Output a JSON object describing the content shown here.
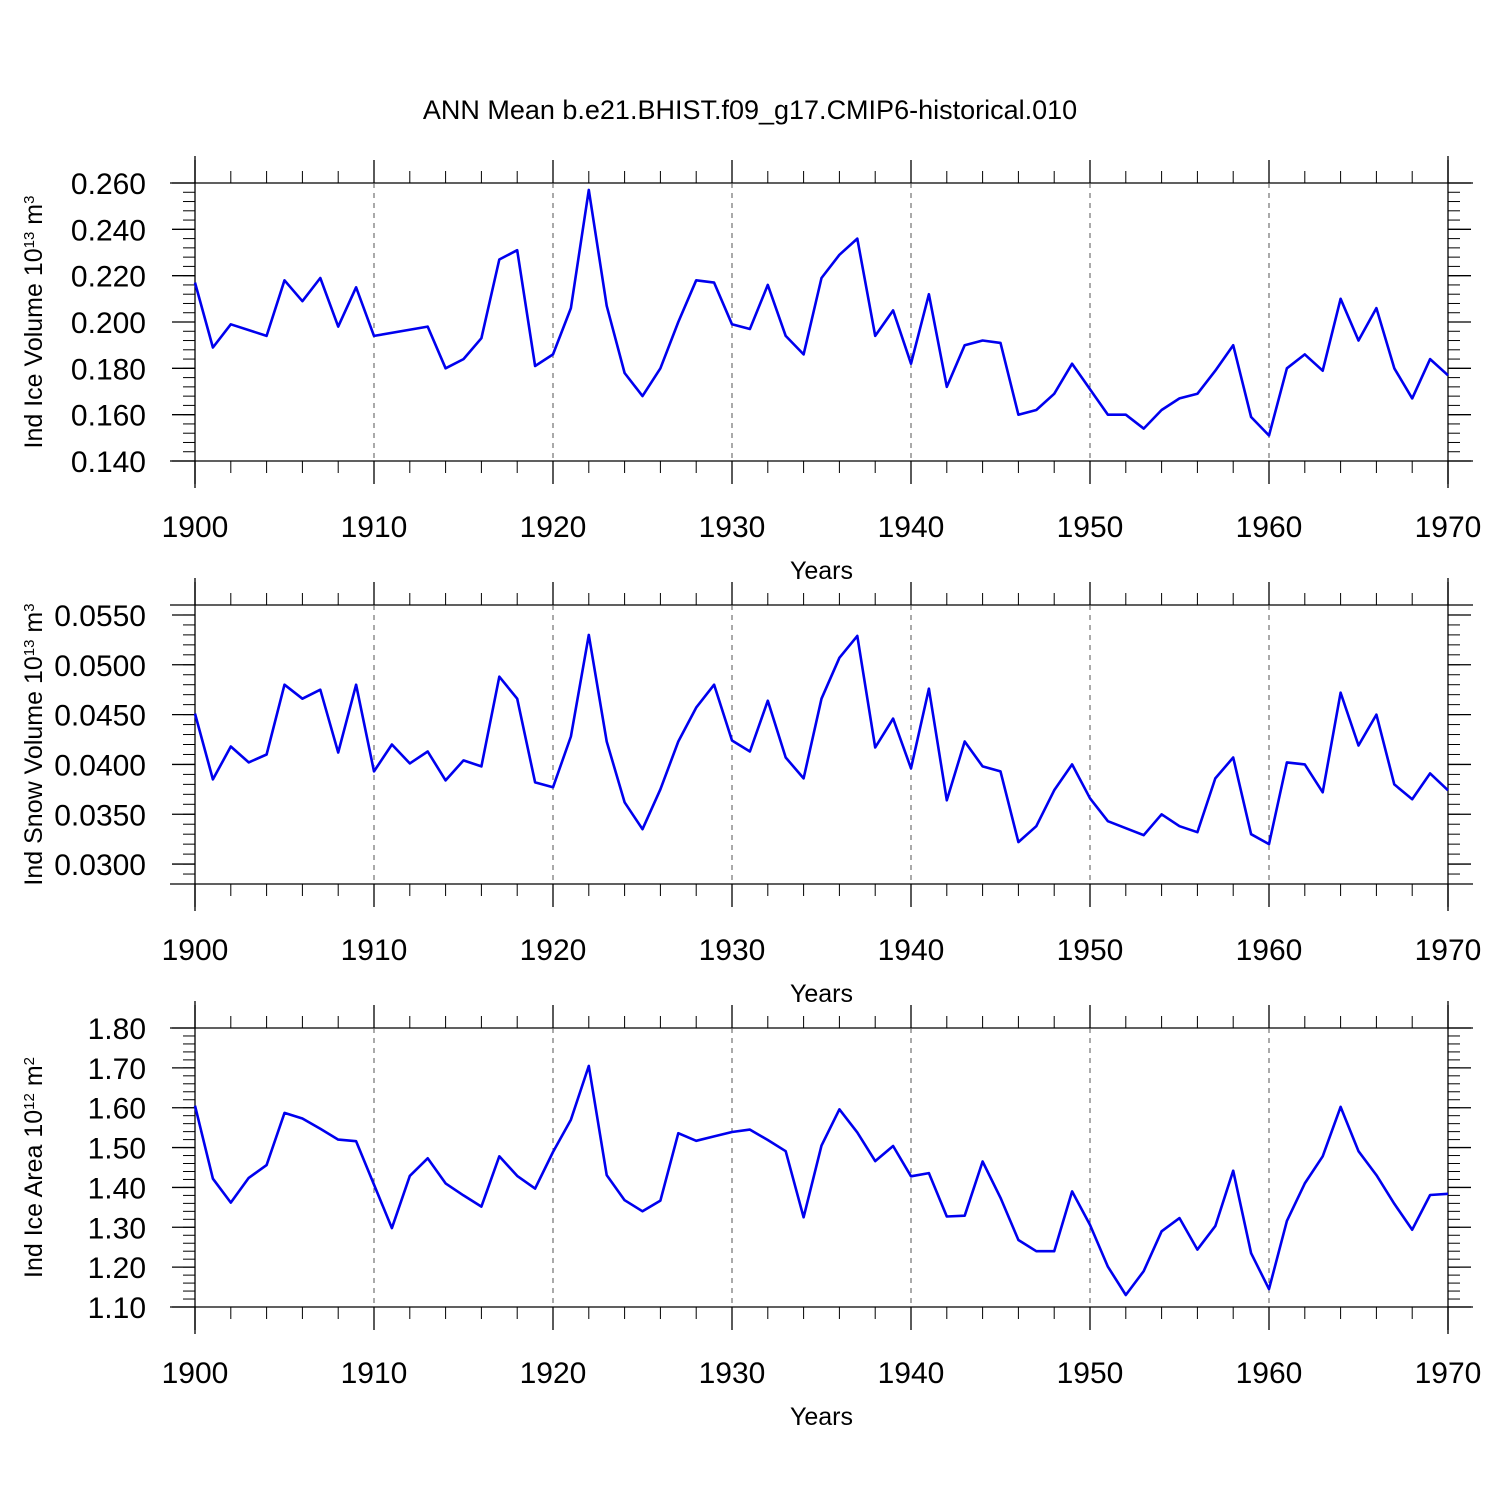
{
  "title": "ANN Mean b.e21.BHIST.f09_g17.CMIP6-historical.010",
  "colors": {
    "line": "#0000ee",
    "axes": "#000000",
    "grid": "#555555"
  },
  "chart_data": [
    {
      "type": "line",
      "ylabel": {
        "base": "Ind Ice Volume 10",
        "exp": "13",
        "unit": " m",
        "unit_exp": "3"
      },
      "xlabel": "Years",
      "xlim": [
        1900,
        1970
      ],
      "xticks": [
        1900,
        1910,
        1920,
        1930,
        1940,
        1950,
        1960,
        1970
      ],
      "xtick_labels": [
        "1900",
        "1910",
        "1920",
        "1930",
        "1940",
        "1950",
        "1960",
        "1970"
      ],
      "ylim": [
        0.14,
        0.26
      ],
      "yticks": [
        0.14,
        0.16,
        0.18,
        0.2,
        0.22,
        0.24,
        0.26
      ],
      "ytick_labels": [
        "0.140",
        "0.160",
        "0.180",
        "0.200",
        "0.220",
        "0.240",
        "0.260"
      ],
      "grid": "vertical dashed at decades",
      "series": [
        {
          "x": [
            1900,
            1901,
            1902,
            1904,
            1905,
            1906,
            1907,
            1908,
            1909,
            1910,
            1913,
            1914,
            1915,
            1916,
            1917,
            1918,
            1919,
            1920,
            1921,
            1922,
            1923,
            1924,
            1925,
            1926,
            1927,
            1928,
            1929,
            1930,
            1931,
            1932,
            1933,
            1934,
            1935,
            1936,
            1937,
            1938,
            1939,
            1940,
            1941,
            1942,
            1943,
            1944,
            1945,
            1946,
            1947,
            1948,
            1949,
            1950,
            1951,
            1952,
            1953,
            1954,
            1955,
            1956,
            1957,
            1958,
            1959,
            1960,
            1961,
            1962,
            1963,
            1964,
            1965,
            1966,
            1967,
            1968,
            1969,
            1970
          ],
          "values": [
            0.217,
            0.189,
            0.199,
            0.194,
            0.218,
            0.209,
            0.219,
            0.198,
            0.215,
            0.194,
            0.198,
            0.18,
            0.184,
            0.193,
            0.227,
            0.231,
            0.181,
            0.186,
            0.206,
            0.257,
            0.207,
            0.178,
            0.168,
            0.18,
            0.2,
            0.218,
            0.217,
            0.199,
            0.197,
            0.216,
            0.194,
            0.186,
            0.219,
            0.229,
            0.236,
            0.194,
            0.205,
            0.182,
            0.212,
            0.172,
            0.19,
            0.192,
            0.191,
            0.16,
            0.162,
            0.169,
            0.182,
            0.171,
            0.16,
            0.16,
            0.154,
            0.162,
            0.167,
            0.169,
            0.179,
            0.19,
            0.159,
            0.151,
            0.18,
            0.186,
            0.179,
            0.21,
            0.192,
            0.206,
            0.18,
            0.167,
            0.184,
            0.177
          ]
        }
      ]
    },
    {
      "type": "line",
      "ylabel": {
        "base": "Ind Snow Volume 10",
        "exp": "13",
        "unit": " m",
        "unit_exp": "3"
      },
      "xlabel": "Years",
      "xlim": [
        1900,
        1970
      ],
      "xticks": [
        1900,
        1910,
        1920,
        1930,
        1940,
        1950,
        1960,
        1970
      ],
      "xtick_labels": [
        "1900",
        "1910",
        "1920",
        "1930",
        "1940",
        "1950",
        "1960",
        "1970"
      ],
      "ylim": [
        0.028,
        0.056
      ],
      "yticks": [
        0.03,
        0.035,
        0.04,
        0.045,
        0.05,
        0.055
      ],
      "ytick_labels": [
        "0.0300",
        "0.0350",
        "0.0400",
        "0.0450",
        "0.0500",
        "0.0550"
      ],
      "grid": "vertical dashed at decades",
      "series": [
        {
          "x": [
            1900,
            1901,
            1902,
            1903,
            1904,
            1905,
            1906,
            1907,
            1908,
            1909,
            1910,
            1911,
            1912,
            1913,
            1914,
            1915,
            1916,
            1917,
            1918,
            1919,
            1920,
            1921,
            1922,
            1923,
            1924,
            1925,
            1926,
            1927,
            1928,
            1929,
            1930,
            1931,
            1932,
            1933,
            1934,
            1935,
            1936,
            1937,
            1938,
            1939,
            1940,
            1941,
            1942,
            1943,
            1944,
            1945,
            1946,
            1947,
            1948,
            1949,
            1950,
            1951,
            1952,
            1953,
            1954,
            1955,
            1956,
            1957,
            1958,
            1959,
            1960,
            1961,
            1962,
            1963,
            1964,
            1965,
            1966,
            1967,
            1968,
            1969,
            1970
          ],
          "values": [
            0.0451,
            0.0385,
            0.0418,
            0.0402,
            0.041,
            0.048,
            0.0466,
            0.0475,
            0.0412,
            0.048,
            0.0393,
            0.042,
            0.0401,
            0.0413,
            0.0384,
            0.0404,
            0.0398,
            0.0488,
            0.0466,
            0.0382,
            0.0377,
            0.0428,
            0.053,
            0.0423,
            0.0362,
            0.0335,
            0.0375,
            0.0423,
            0.0457,
            0.048,
            0.0424,
            0.0413,
            0.0464,
            0.0407,
            0.0386,
            0.0466,
            0.0507,
            0.0529,
            0.0417,
            0.0446,
            0.0396,
            0.0476,
            0.0364,
            0.0423,
            0.0398,
            0.0393,
            0.0322,
            0.0338,
            0.0374,
            0.04,
            0.0366,
            0.0343,
            0.0336,
            0.0329,
            0.035,
            0.0338,
            0.0332,
            0.0386,
            0.0407,
            0.033,
            0.032,
            0.0402,
            0.04,
            0.0372,
            0.0472,
            0.0419,
            0.045,
            0.038,
            0.0365,
            0.0391,
            0.0374
          ]
        }
      ]
    },
    {
      "type": "line",
      "ylabel": {
        "base": "Ind Ice Area 10",
        "exp": "12",
        "unit": " m",
        "unit_exp": "2"
      },
      "xlabel": "Years",
      "xlim": [
        1900,
        1970
      ],
      "xticks": [
        1900,
        1910,
        1920,
        1930,
        1940,
        1950,
        1960,
        1970
      ],
      "xtick_labels": [
        "1900",
        "1910",
        "1920",
        "1930",
        "1940",
        "1950",
        "1960",
        "1970"
      ],
      "ylim": [
        1.1,
        1.8
      ],
      "yticks": [
        1.1,
        1.2,
        1.3,
        1.4,
        1.5,
        1.6,
        1.7,
        1.8
      ],
      "ytick_labels": [
        "1.10",
        "1.20",
        "1.30",
        "1.40",
        "1.50",
        "1.60",
        "1.70",
        "1.80"
      ],
      "grid": "vertical dashed at decades",
      "series": [
        {
          "x": [
            1900,
            1901,
            1902,
            1903,
            1904,
            1905,
            1906,
            1907,
            1908,
            1909,
            1910,
            1911,
            1912,
            1913,
            1914,
            1915,
            1916,
            1917,
            1918,
            1919,
            1920,
            1921,
            1922,
            1923,
            1924,
            1925,
            1926,
            1927,
            1928,
            1929,
            1930,
            1931,
            1932,
            1933,
            1934,
            1935,
            1936,
            1937,
            1938,
            1939,
            1940,
            1941,
            1942,
            1943,
            1944,
            1945,
            1946,
            1947,
            1948,
            1949,
            1950,
            1951,
            1952,
            1953,
            1954,
            1955,
            1956,
            1957,
            1958,
            1959,
            1960,
            1961,
            1962,
            1963,
            1964,
            1965,
            1966,
            1967,
            1968,
            1969,
            1970
          ],
          "values": [
            1.605,
            1.422,
            1.362,
            1.424,
            1.456,
            1.587,
            1.573,
            1.547,
            1.52,
            1.516,
            1.407,
            1.298,
            1.429,
            1.473,
            1.41,
            1.38,
            1.352,
            1.478,
            1.429,
            1.397,
            1.489,
            1.57,
            1.705,
            1.431,
            1.368,
            1.34,
            1.367,
            1.536,
            1.517,
            1.528,
            1.539,
            1.545,
            1.519,
            1.491,
            1.325,
            1.505,
            1.596,
            1.538,
            1.466,
            1.504,
            1.428,
            1.436,
            1.327,
            1.329,
            1.465,
            1.374,
            1.268,
            1.24,
            1.24,
            1.39,
            1.306,
            1.201,
            1.13,
            1.19,
            1.29,
            1.323,
            1.244,
            1.303,
            1.442,
            1.235,
            1.145,
            1.316,
            1.41,
            1.478,
            1.602,
            1.491,
            1.431,
            1.359,
            1.294,
            1.381,
            1.384
          ]
        }
      ]
    }
  ]
}
